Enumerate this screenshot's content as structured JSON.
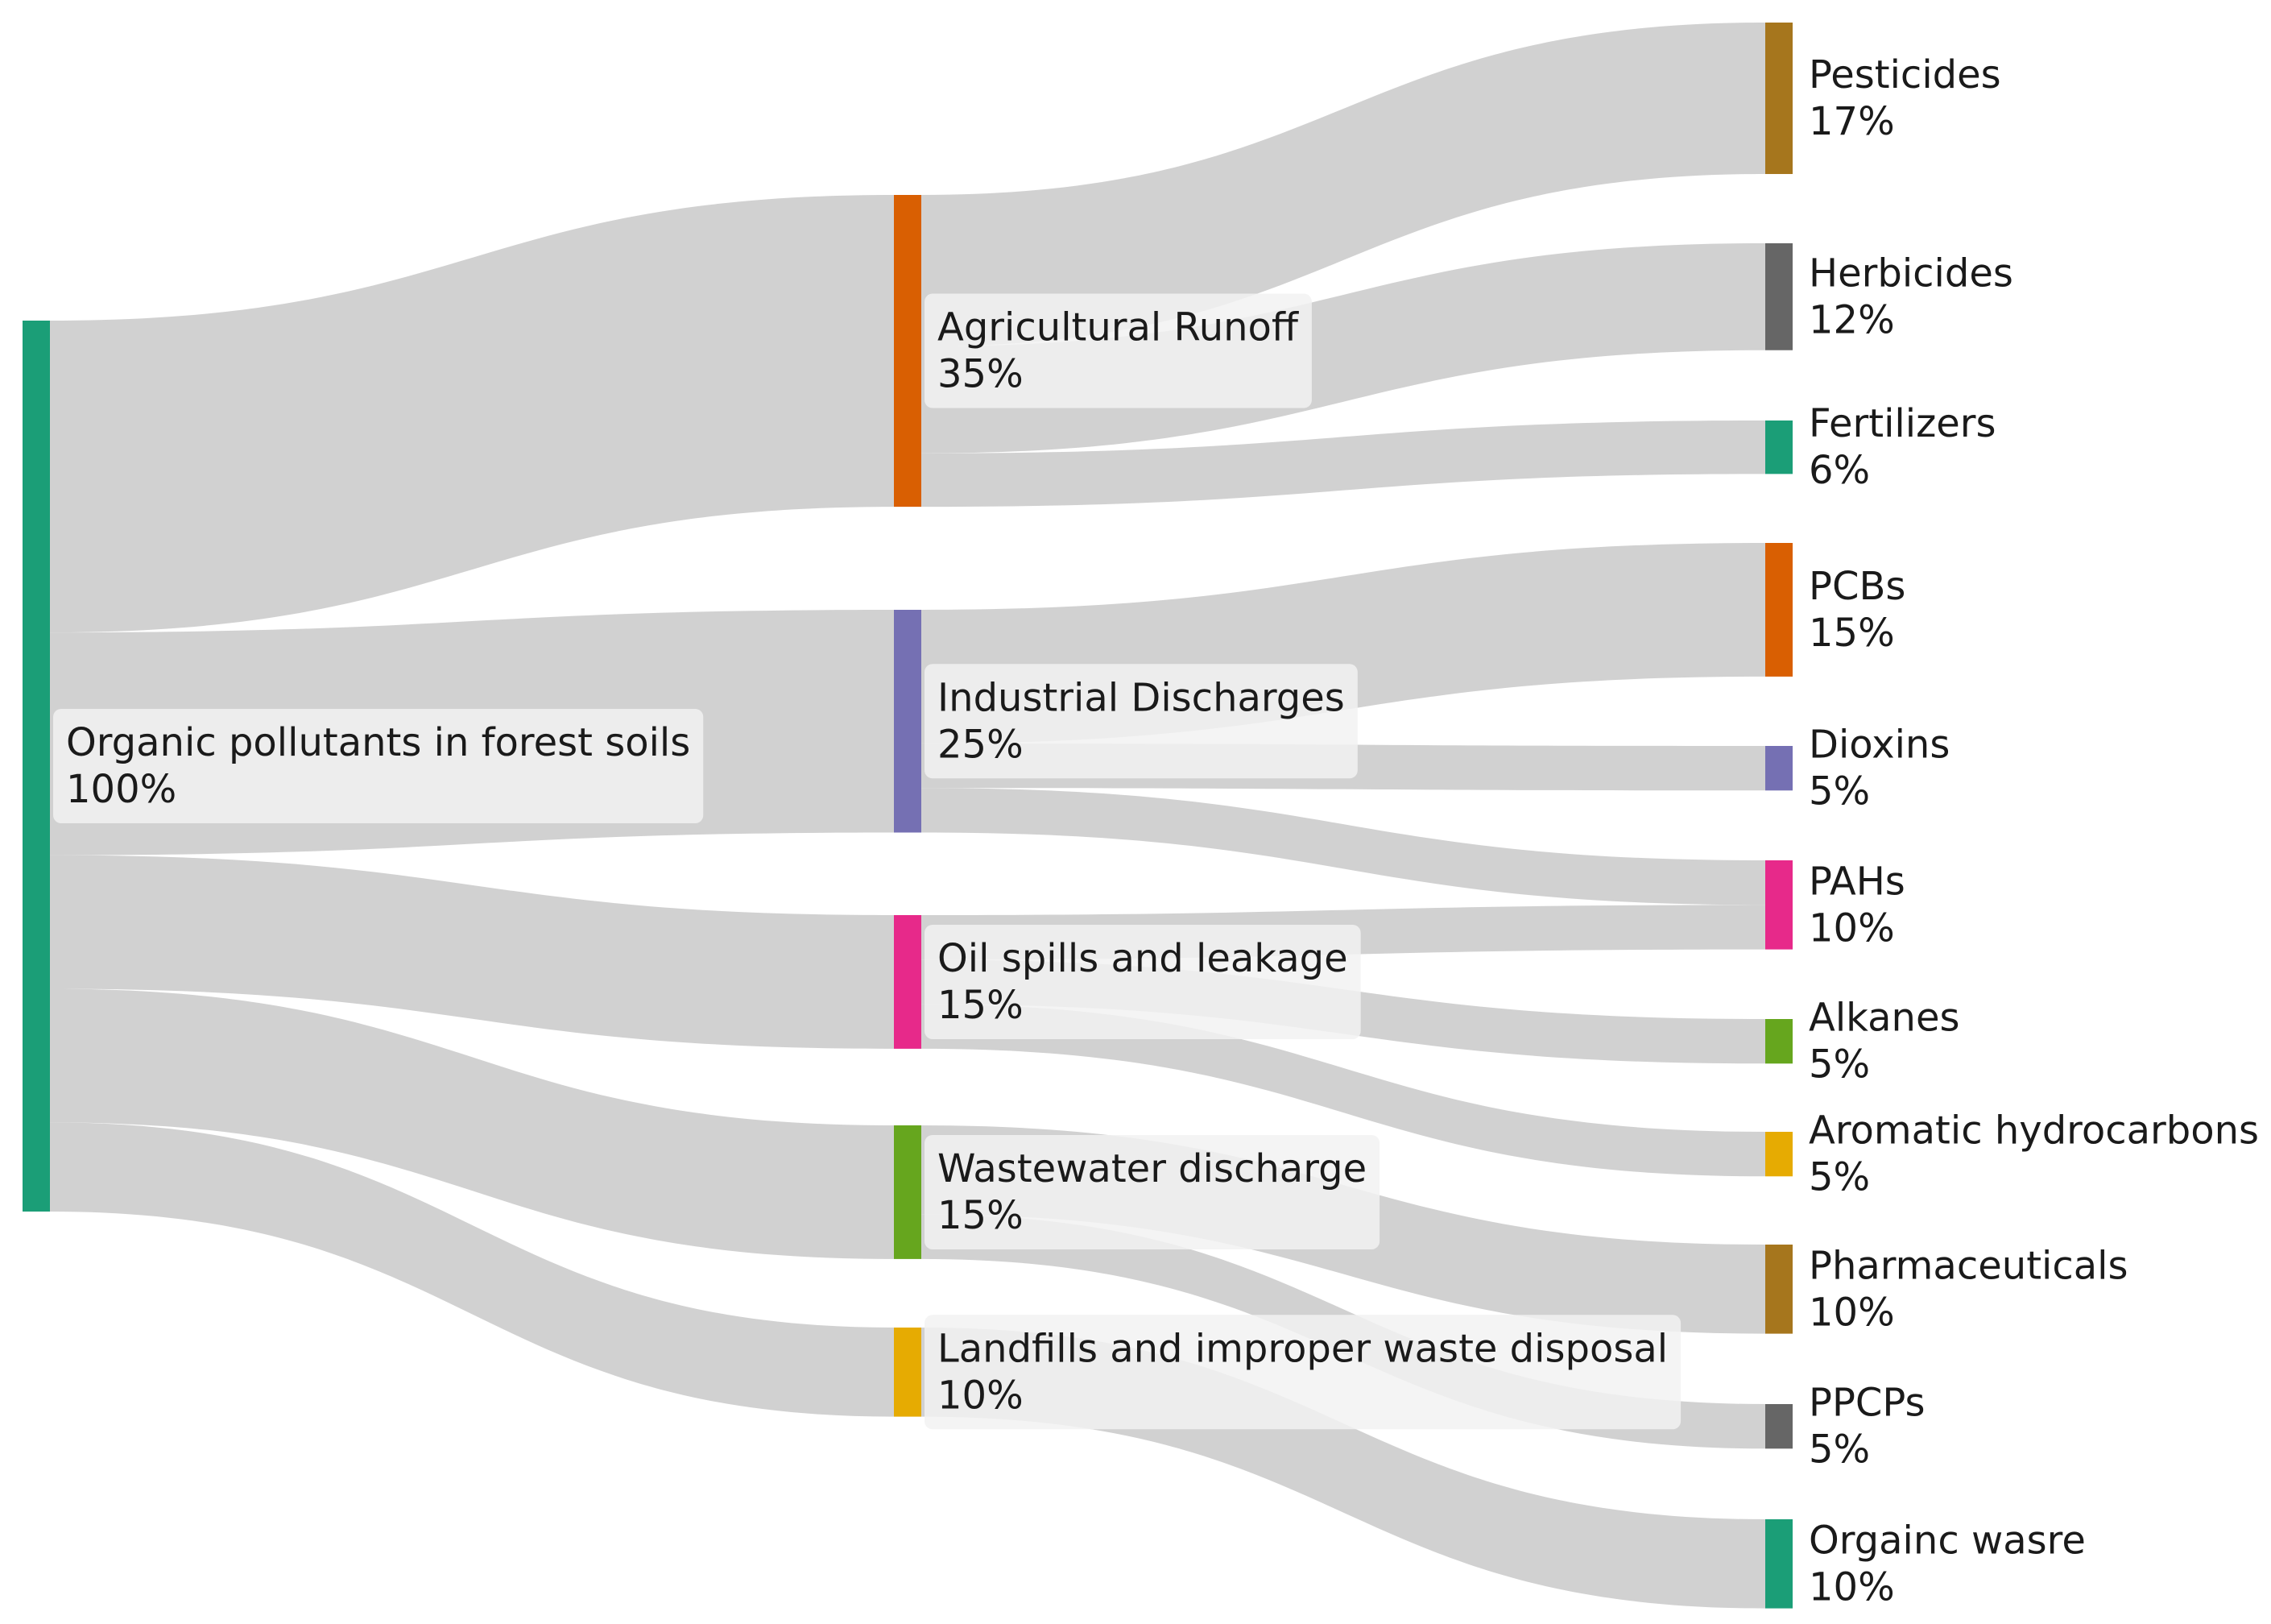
{
  "chart_data": {
    "type": "sankey",
    "title": "",
    "colors": {
      "green": "#1b9e77",
      "orange": "#d95f02",
      "purple": "#7570b3",
      "magenta": "#e7298a",
      "lime": "#66a61e",
      "yellow": "#e6ab02",
      "brown": "#a6761d",
      "gray": "#666666",
      "link": "#cfcfcf"
    },
    "nodes": [
      {
        "id": "root",
        "name": "Organic pollutants in forest soils",
        "pct": "100%",
        "value": 100,
        "column": 0,
        "color": "#1b9e77"
      },
      {
        "id": "agri",
        "name": "Agricultural Runoff",
        "pct": "35%",
        "value": 35,
        "column": 1,
        "color": "#d95f02"
      },
      {
        "id": "ind",
        "name": "Industrial Discharges",
        "pct": "25%",
        "value": 25,
        "column": 1,
        "color": "#7570b3"
      },
      {
        "id": "oil",
        "name": "Oil spills and leakage",
        "pct": "15%",
        "value": 15,
        "column": 1,
        "color": "#e7298a"
      },
      {
        "id": "waste",
        "name": "Wastewater discharge",
        "pct": "15%",
        "value": 15,
        "column": 1,
        "color": "#66a61e"
      },
      {
        "id": "land",
        "name": "Landfills and improper waste disposal",
        "pct": "10%",
        "value": 10,
        "column": 1,
        "color": "#e6ab02"
      },
      {
        "id": "pest",
        "name": "Pesticides",
        "pct": "17%",
        "value": 17,
        "column": 2,
        "color": "#a6761d"
      },
      {
        "id": "herb",
        "name": "Herbicides",
        "pct": "12%",
        "value": 12,
        "column": 2,
        "color": "#666666"
      },
      {
        "id": "fert",
        "name": "Fertilizers",
        "pct": "6%",
        "value": 6,
        "column": 2,
        "color": "#1b9e77"
      },
      {
        "id": "pcb",
        "name": "PCBs",
        "pct": "15%",
        "value": 15,
        "column": 2,
        "color": "#d95f02"
      },
      {
        "id": "diox",
        "name": "Dioxins",
        "pct": "5%",
        "value": 5,
        "column": 2,
        "color": "#7570b3"
      },
      {
        "id": "pah",
        "name": "PAHs",
        "pct": "10%",
        "value": 10,
        "column": 2,
        "color": "#e7298a"
      },
      {
        "id": "alk",
        "name": "Alkanes",
        "pct": "5%",
        "value": 5,
        "column": 2,
        "color": "#66a61e"
      },
      {
        "id": "arom",
        "name": "Aromatic hydrocarbons",
        "pct": "5%",
        "value": 5,
        "column": 2,
        "color": "#e6ab02"
      },
      {
        "id": "pharm",
        "name": "Pharmaceuticals",
        "pct": "10%",
        "value": 10,
        "column": 2,
        "color": "#a6761d"
      },
      {
        "id": "ppcp",
        "name": "PPCPs",
        "pct": "5%",
        "value": 5,
        "column": 2,
        "color": "#666666"
      },
      {
        "id": "orgw",
        "name": "Orgainc wasre",
        "pct": "10%",
        "value": 10,
        "column": 2,
        "color": "#1b9e77"
      }
    ],
    "links": [
      {
        "source": "root",
        "target": "agri",
        "value": 35
      },
      {
        "source": "root",
        "target": "ind",
        "value": 25
      },
      {
        "source": "root",
        "target": "oil",
        "value": 15
      },
      {
        "source": "root",
        "target": "waste",
        "value": 15
      },
      {
        "source": "root",
        "target": "land",
        "value": 10
      },
      {
        "source": "agri",
        "target": "pest",
        "value": 17
      },
      {
        "source": "agri",
        "target": "herb",
        "value": 12
      },
      {
        "source": "agri",
        "target": "fert",
        "value": 6
      },
      {
        "source": "ind",
        "target": "pcb",
        "value": 15
      },
      {
        "source": "ind",
        "target": "diox",
        "value": 5
      },
      {
        "source": "ind",
        "target": "pah",
        "value": 5
      },
      {
        "source": "oil",
        "target": "pah",
        "value": 5
      },
      {
        "source": "oil",
        "target": "alk",
        "value": 5
      },
      {
        "source": "oil",
        "target": "arom",
        "value": 5
      },
      {
        "source": "waste",
        "target": "pharm",
        "value": 10
      },
      {
        "source": "waste",
        "target": "ppcp",
        "value": 5
      },
      {
        "source": "land",
        "target": "orgw",
        "value": 10
      }
    ]
  }
}
